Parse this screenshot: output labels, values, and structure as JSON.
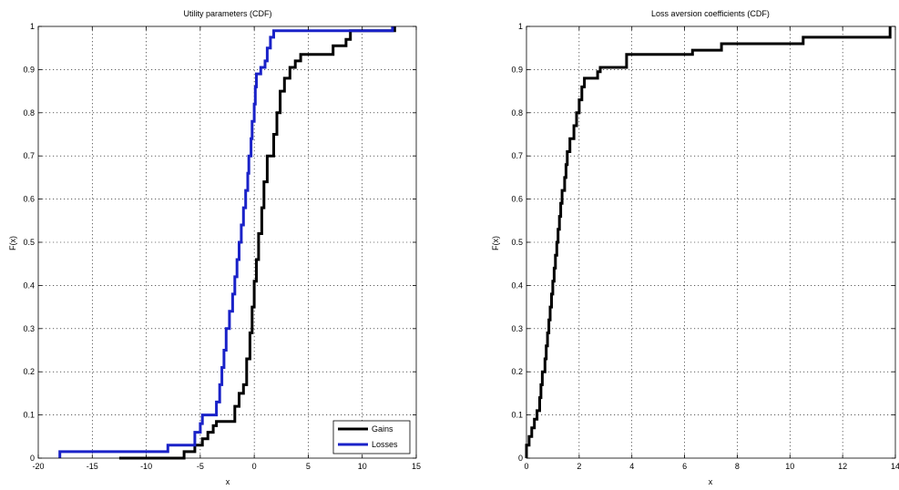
{
  "chart_data": [
    {
      "type": "line",
      "title": "Utility parameters (CDF)",
      "xlabel": "x",
      "ylabel": "F(x)",
      "xlim": [
        -20,
        15
      ],
      "ylim": [
        0,
        1
      ],
      "xticks": [
        "-20",
        "-15",
        "-10",
        "-5",
        "0",
        "5",
        "10",
        "15"
      ],
      "yticks": [
        "0",
        "0.1",
        "0.2",
        "0.3",
        "0.4",
        "0.5",
        "0.6",
        "0.7",
        "0.8",
        "0.9",
        "1"
      ],
      "grid": true,
      "step": true,
      "legend_position": "bottom-right",
      "series": [
        {
          "name": "Gains",
          "color": "#000000",
          "points": [
            [
              -12.5,
              0.0
            ],
            [
              -6.5,
              0.0
            ],
            [
              -6.5,
              0.015
            ],
            [
              -5.5,
              0.015
            ],
            [
              -5.5,
              0.03
            ],
            [
              -4.8,
              0.03
            ],
            [
              -4.8,
              0.045
            ],
            [
              -4.3,
              0.045
            ],
            [
              -4.3,
              0.06
            ],
            [
              -3.8,
              0.06
            ],
            [
              -3.8,
              0.075
            ],
            [
              -3.5,
              0.075
            ],
            [
              -3.5,
              0.085
            ],
            [
              -1.8,
              0.085
            ],
            [
              -1.8,
              0.12
            ],
            [
              -1.4,
              0.12
            ],
            [
              -1.4,
              0.15
            ],
            [
              -1.0,
              0.15
            ],
            [
              -1.0,
              0.17
            ],
            [
              -0.7,
              0.17
            ],
            [
              -0.7,
              0.23
            ],
            [
              -0.4,
              0.23
            ],
            [
              -0.4,
              0.29
            ],
            [
              -0.2,
              0.29
            ],
            [
              -0.2,
              0.35
            ],
            [
              0.0,
              0.35
            ],
            [
              0.0,
              0.41
            ],
            [
              0.2,
              0.41
            ],
            [
              0.2,
              0.46
            ],
            [
              0.4,
              0.46
            ],
            [
              0.4,
              0.52
            ],
            [
              0.7,
              0.52
            ],
            [
              0.7,
              0.58
            ],
            [
              0.9,
              0.58
            ],
            [
              0.9,
              0.64
            ],
            [
              1.2,
              0.64
            ],
            [
              1.2,
              0.7
            ],
            [
              1.8,
              0.7
            ],
            [
              1.8,
              0.75
            ],
            [
              2.1,
              0.75
            ],
            [
              2.1,
              0.8
            ],
            [
              2.4,
              0.8
            ],
            [
              2.4,
              0.85
            ],
            [
              2.8,
              0.85
            ],
            [
              2.8,
              0.88
            ],
            [
              3.3,
              0.88
            ],
            [
              3.3,
              0.905
            ],
            [
              3.8,
              0.905
            ],
            [
              3.8,
              0.92
            ],
            [
              4.3,
              0.92
            ],
            [
              4.3,
              0.935
            ],
            [
              7.3,
              0.935
            ],
            [
              7.3,
              0.955
            ],
            [
              8.5,
              0.955
            ],
            [
              8.5,
              0.97
            ],
            [
              8.9,
              0.97
            ],
            [
              8.9,
              0.99
            ],
            [
              13.0,
              0.99
            ],
            [
              13.0,
              1.0
            ]
          ]
        },
        {
          "name": "Losses",
          "color": "#1a22c8",
          "points": [
            [
              -18.0,
              0.0
            ],
            [
              -18.0,
              0.015
            ],
            [
              -8.0,
              0.015
            ],
            [
              -8.0,
              0.03
            ],
            [
              -5.5,
              0.03
            ],
            [
              -5.5,
              0.06
            ],
            [
              -5.0,
              0.06
            ],
            [
              -5.0,
              0.08
            ],
            [
              -4.8,
              0.08
            ],
            [
              -4.8,
              0.1
            ],
            [
              -3.5,
              0.1
            ],
            [
              -3.5,
              0.13
            ],
            [
              -3.2,
              0.13
            ],
            [
              -3.2,
              0.17
            ],
            [
              -3.0,
              0.17
            ],
            [
              -3.0,
              0.21
            ],
            [
              -2.8,
              0.21
            ],
            [
              -2.8,
              0.25
            ],
            [
              -2.6,
              0.25
            ],
            [
              -2.6,
              0.3
            ],
            [
              -2.3,
              0.3
            ],
            [
              -2.3,
              0.34
            ],
            [
              -2.0,
              0.34
            ],
            [
              -2.0,
              0.38
            ],
            [
              -1.8,
              0.38
            ],
            [
              -1.8,
              0.42
            ],
            [
              -1.6,
              0.42
            ],
            [
              -1.6,
              0.46
            ],
            [
              -1.4,
              0.46
            ],
            [
              -1.4,
              0.5
            ],
            [
              -1.2,
              0.5
            ],
            [
              -1.2,
              0.54
            ],
            [
              -1.0,
              0.54
            ],
            [
              -1.0,
              0.58
            ],
            [
              -0.8,
              0.58
            ],
            [
              -0.8,
              0.62
            ],
            [
              -0.6,
              0.62
            ],
            [
              -0.6,
              0.66
            ],
            [
              -0.5,
              0.66
            ],
            [
              -0.5,
              0.7
            ],
            [
              -0.3,
              0.7
            ],
            [
              -0.3,
              0.74
            ],
            [
              -0.2,
              0.74
            ],
            [
              -0.2,
              0.78
            ],
            [
              0.0,
              0.78
            ],
            [
              0.0,
              0.82
            ],
            [
              0.1,
              0.82
            ],
            [
              0.1,
              0.86
            ],
            [
              0.2,
              0.86
            ],
            [
              0.2,
              0.89
            ],
            [
              0.6,
              0.89
            ],
            [
              0.6,
              0.905
            ],
            [
              1.0,
              0.905
            ],
            [
              1.0,
              0.92
            ],
            [
              1.2,
              0.92
            ],
            [
              1.2,
              0.95
            ],
            [
              1.5,
              0.95
            ],
            [
              1.5,
              0.975
            ],
            [
              1.8,
              0.975
            ],
            [
              1.8,
              0.99
            ],
            [
              12.8,
              0.99
            ],
            [
              12.8,
              1.0
            ]
          ]
        }
      ]
    },
    {
      "type": "line",
      "title": "Loss aversion coefficients (CDF)",
      "xlabel": "x",
      "ylabel": "F(x)",
      "xlim": [
        0,
        14
      ],
      "ylim": [
        0,
        1
      ],
      "xticks": [
        "0",
        "2",
        "4",
        "6",
        "8",
        "10",
        "12",
        "14"
      ],
      "yticks": [
        "0",
        "0.1",
        "0.2",
        "0.3",
        "0.4",
        "0.5",
        "0.6",
        "0.7",
        "0.8",
        "0.9",
        "1"
      ],
      "grid": true,
      "step": true,
      "series": [
        {
          "color": "#000000",
          "points": [
            [
              0.0,
              0.0
            ],
            [
              0.0,
              0.03
            ],
            [
              0.1,
              0.03
            ],
            [
              0.1,
              0.05
            ],
            [
              0.2,
              0.05
            ],
            [
              0.2,
              0.07
            ],
            [
              0.3,
              0.07
            ],
            [
              0.3,
              0.09
            ],
            [
              0.4,
              0.09
            ],
            [
              0.4,
              0.11
            ],
            [
              0.5,
              0.11
            ],
            [
              0.5,
              0.14
            ],
            [
              0.55,
              0.14
            ],
            [
              0.55,
              0.17
            ],
            [
              0.6,
              0.17
            ],
            [
              0.6,
              0.2
            ],
            [
              0.7,
              0.2
            ],
            [
              0.7,
              0.23
            ],
            [
              0.75,
              0.23
            ],
            [
              0.75,
              0.26
            ],
            [
              0.8,
              0.26
            ],
            [
              0.8,
              0.29
            ],
            [
              0.85,
              0.29
            ],
            [
              0.85,
              0.32
            ],
            [
              0.9,
              0.32
            ],
            [
              0.9,
              0.35
            ],
            [
              0.95,
              0.35
            ],
            [
              0.95,
              0.38
            ],
            [
              1.0,
              0.38
            ],
            [
              1.0,
              0.41
            ],
            [
              1.05,
              0.41
            ],
            [
              1.05,
              0.44
            ],
            [
              1.1,
              0.44
            ],
            [
              1.1,
              0.47
            ],
            [
              1.15,
              0.47
            ],
            [
              1.15,
              0.5
            ],
            [
              1.2,
              0.5
            ],
            [
              1.2,
              0.53
            ],
            [
              1.25,
              0.53
            ],
            [
              1.25,
              0.56
            ],
            [
              1.3,
              0.56
            ],
            [
              1.3,
              0.59
            ],
            [
              1.35,
              0.59
            ],
            [
              1.35,
              0.62
            ],
            [
              1.45,
              0.62
            ],
            [
              1.45,
              0.65
            ],
            [
              1.5,
              0.65
            ],
            [
              1.5,
              0.68
            ],
            [
              1.55,
              0.68
            ],
            [
              1.55,
              0.71
            ],
            [
              1.65,
              0.71
            ],
            [
              1.65,
              0.74
            ],
            [
              1.8,
              0.74
            ],
            [
              1.8,
              0.77
            ],
            [
              1.9,
              0.77
            ],
            [
              1.9,
              0.8
            ],
            [
              2.0,
              0.8
            ],
            [
              2.0,
              0.83
            ],
            [
              2.1,
              0.83
            ],
            [
              2.1,
              0.86
            ],
            [
              2.2,
              0.86
            ],
            [
              2.2,
              0.88
            ],
            [
              2.7,
              0.88
            ],
            [
              2.7,
              0.895
            ],
            [
              2.8,
              0.895
            ],
            [
              2.8,
              0.905
            ],
            [
              3.8,
              0.905
            ],
            [
              3.8,
              0.935
            ],
            [
              6.3,
              0.935
            ],
            [
              6.3,
              0.945
            ],
            [
              7.4,
              0.945
            ],
            [
              7.4,
              0.96
            ],
            [
              10.5,
              0.96
            ],
            [
              10.5,
              0.975
            ],
            [
              13.8,
              0.975
            ],
            [
              13.8,
              1.0
            ]
          ]
        }
      ]
    }
  ]
}
